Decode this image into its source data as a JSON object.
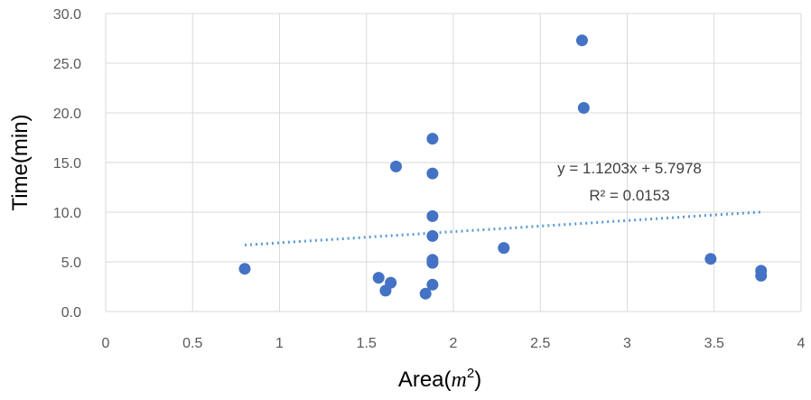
{
  "chart_data": {
    "type": "scatter",
    "xlabel_main": "Area(",
    "xlabel_var": "m",
    "xlabel_sup": "2",
    "xlabel_close": ")",
    "ylabel": "Time(min)",
    "xlim": [
      0,
      4
    ],
    "ylim": [
      0,
      30
    ],
    "xticks": [
      "0",
      "0.5",
      "1",
      "1.5",
      "2",
      "2.5",
      "3",
      "3.5",
      "4"
    ],
    "yticks": [
      "0.0",
      "5.0",
      "10.0",
      "15.0",
      "20.0",
      "25.0",
      "30.0"
    ],
    "grid": true,
    "marker_color": "#4472C4",
    "trendline_color": "#5B9BD5",
    "series": [
      {
        "points": [
          {
            "x": 0.8,
            "y": 4.3
          },
          {
            "x": 1.57,
            "y": 3.4
          },
          {
            "x": 1.61,
            "y": 2.1
          },
          {
            "x": 1.64,
            "y": 2.9
          },
          {
            "x": 1.67,
            "y": 14.6
          },
          {
            "x": 1.84,
            "y": 1.8
          },
          {
            "x": 1.88,
            "y": 17.4
          },
          {
            "x": 1.88,
            "y": 13.9
          },
          {
            "x": 1.88,
            "y": 9.6
          },
          {
            "x": 1.88,
            "y": 7.6
          },
          {
            "x": 1.88,
            "y": 5.2
          },
          {
            "x": 1.88,
            "y": 4.9
          },
          {
            "x": 1.88,
            "y": 2.7
          },
          {
            "x": 2.29,
            "y": 6.4
          },
          {
            "x": 2.74,
            "y": 27.3
          },
          {
            "x": 2.75,
            "y": 20.5
          },
          {
            "x": 3.48,
            "y": 5.3
          },
          {
            "x": 3.77,
            "y": 4.1
          },
          {
            "x": 3.77,
            "y": 3.6
          }
        ]
      }
    ],
    "trendline": {
      "slope": 1.1203,
      "intercept": 5.7978,
      "x_range": [
        0.8,
        3.77
      ],
      "equation_text": "y = 1.1203x + 5.7978",
      "r2_text": "R² = 0.0153"
    }
  }
}
